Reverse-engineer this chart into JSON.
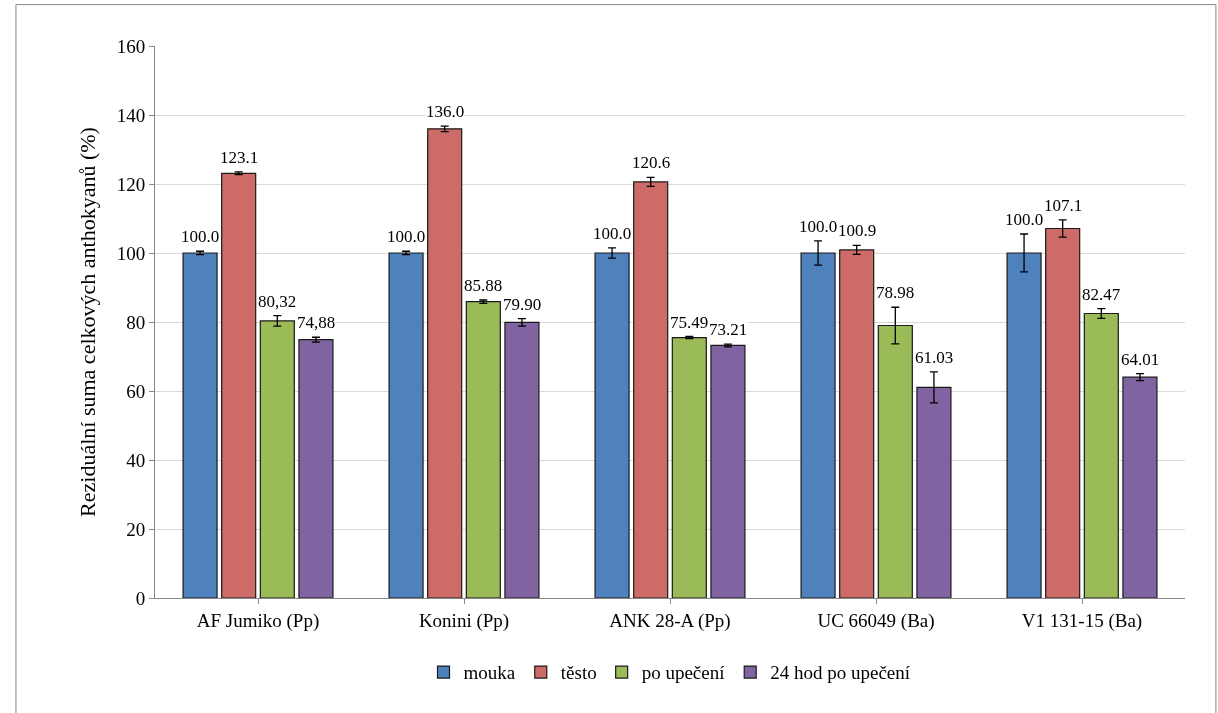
{
  "chart_data": {
    "type": "bar",
    "ylabel": "Reziduální suma celkových anthokyanů (%)",
    "categories": [
      "AF Jumiko (Pp)",
      "Konini (Pp)",
      "ANK 28-A (Pp)",
      "UC 66049 (Ba)",
      "V1 131-15 (Ba)"
    ],
    "series": [
      {
        "name": "mouka",
        "color": "#4f81bd",
        "values": [
          100.0,
          100.0,
          100.0,
          100.0,
          100.0
        ],
        "errors": [
          0.5,
          0.5,
          1.5,
          3.5,
          5.5
        ],
        "value_labels": [
          "100.0",
          "100.0",
          "100.0",
          "100.0",
          "100.0"
        ]
      },
      {
        "name": "těsto",
        "color": "#cd6b68",
        "values": [
          123.1,
          136.0,
          120.6,
          100.9,
          107.1
        ],
        "errors": [
          0.4,
          0.8,
          1.3,
          1.3,
          2.5
        ],
        "value_labels": [
          "123.1",
          "136.0",
          "120.6",
          "100.9",
          "107.1"
        ]
      },
      {
        "name": "po upečení",
        "color": "#9bbb59",
        "values": [
          80.32,
          85.88,
          75.49,
          78.98,
          82.47
        ],
        "errors": [
          1.5,
          0.5,
          0.3,
          5.3,
          1.4
        ],
        "value_labels": [
          "80,32",
          "85.88",
          "75.49",
          "78.98",
          "82.47"
        ]
      },
      {
        "name": "24 hod po upečení",
        "color": "#8064a2",
        "values": [
          74.88,
          79.9,
          73.21,
          61.03,
          64.01
        ],
        "errors": [
          0.7,
          1.1,
          0.4,
          4.5,
          1.0
        ],
        "value_labels": [
          "74,88",
          "79.90",
          "73.21",
          "61.03",
          "64.01"
        ]
      }
    ],
    "ylim": [
      0,
      160
    ],
    "yticks": [
      0,
      20,
      40,
      60,
      80,
      100,
      120,
      140,
      160
    ],
    "grid": "y",
    "legend": "bottom"
  }
}
